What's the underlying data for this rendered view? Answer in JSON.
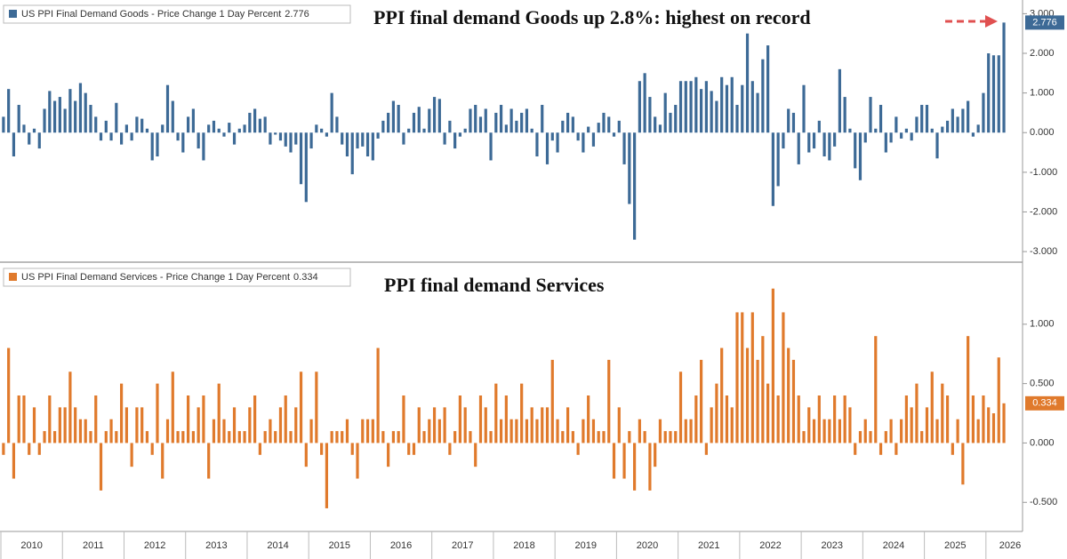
{
  "chart_data": [
    {
      "type": "bar",
      "annotation": "PPI final demand Goods up 2.8%: highest on record",
      "series": [
        {
          "name": "US PPI Final Demand Goods - Price Change 1 Day Percent",
          "color": "#3d6a96",
          "values": [
            0.4,
            1.1,
            -0.6,
            0.7,
            0.2,
            -0.3,
            0.1,
            -0.4,
            0.6,
            1.05,
            0.8,
            0.9,
            0.6,
            1.1,
            0.8,
            1.25,
            1.0,
            0.7,
            0.4,
            -0.2,
            0.3,
            -0.2,
            0.75,
            -0.3,
            0.2,
            -0.2,
            0.4,
            0.35,
            0.1,
            -0.7,
            -0.6,
            0.2,
            1.2,
            0.8,
            -0.2,
            -0.5,
            0.4,
            0.6,
            -0.4,
            -0.7,
            0.2,
            0.3,
            0.1,
            -0.1,
            0.25,
            -0.3,
            0.1,
            0.2,
            0.5,
            0.6,
            0.35,
            0.4,
            -0.3,
            -0.05,
            -0.2,
            -0.35,
            -0.5,
            -0.3,
            -1.3,
            -1.75,
            -0.4,
            0.2,
            0.1,
            -0.1,
            1.0,
            0.4,
            -0.3,
            -0.6,
            -1.05,
            -0.4,
            -0.35,
            -0.6,
            -0.7,
            -0.15,
            0.3,
            0.5,
            0.8,
            0.7,
            -0.3,
            0.1,
            0.5,
            0.65,
            0.1,
            0.6,
            0.9,
            0.85,
            -0.3,
            0.3,
            -0.4,
            -0.1,
            0.1,
            0.6,
            0.7,
            0.4,
            0.6,
            -0.7,
            0.5,
            0.7,
            0.2,
            0.6,
            0.3,
            0.5,
            0.6,
            0.1,
            -0.6,
            0.7,
            -0.8,
            -0.2,
            -0.5,
            0.3,
            0.5,
            0.4,
            -0.2,
            -0.5,
            0.15,
            -0.35,
            0.25,
            0.5,
            0.4,
            -0.1,
            0.3,
            -0.8,
            -1.8,
            -2.7,
            1.3,
            1.5,
            0.9,
            0.4,
            0.2,
            1.0,
            0.5,
            0.7,
            1.3,
            1.3,
            1.3,
            1.4,
            1.1,
            1.3,
            1.05,
            0.8,
            1.4,
            1.2,
            1.4,
            0.7,
            1.2,
            2.5,
            1.3,
            1.0,
            1.85,
            2.2,
            -1.85,
            -1.35,
            -0.4,
            0.6,
            0.5,
            -0.8,
            1.2,
            -0.5,
            -0.4,
            0.3,
            -0.6,
            -0.7,
            -0.35,
            1.6,
            0.9,
            0.1,
            -0.9,
            -1.2,
            -0.25,
            0.9,
            0.1,
            0.7,
            -0.5,
            -0.25,
            0.4,
            -0.15,
            0.1,
            -0.2,
            0.4,
            0.7,
            0.7,
            0.1,
            -0.65,
            0.15,
            0.3,
            0.6,
            0.4,
            0.6,
            0.8,
            -0.1,
            0.2,
            1.0,
            2.0,
            1.95,
            1.95,
            2.776
          ]
        }
      ],
      "ylim": [
        -3.2,
        3.3
      ],
      "yticks": [
        {
          "value": 3,
          "label": "3.000"
        },
        {
          "value": 2,
          "label": "2.000"
        },
        {
          "value": 1,
          "label": "1.000"
        },
        {
          "value": 0,
          "label": "0.000"
        },
        {
          "value": -1,
          "label": "-1.000"
        },
        {
          "value": -2,
          "label": "-2.000"
        },
        {
          "value": -3,
          "label": "-3.000"
        }
      ]
    },
    {
      "type": "bar",
      "annotation": "PPI final demand Services",
      "categories": [
        "2010",
        null,
        null,
        null,
        null,
        null,
        null,
        null,
        null,
        null,
        null,
        null,
        "2011",
        null,
        null,
        null,
        null,
        null,
        null,
        null,
        null,
        null,
        null,
        null,
        "2012",
        null,
        null,
        null,
        null,
        null,
        null,
        null,
        null,
        null,
        null,
        null,
        "2013",
        null,
        null,
        null,
        null,
        null,
        null,
        null,
        null,
        null,
        null,
        null,
        "2014",
        null,
        null,
        null,
        null,
        null,
        null,
        null,
        null,
        null,
        null,
        null,
        "2015",
        null,
        null,
        null,
        null,
        null,
        null,
        null,
        null,
        null,
        null,
        null,
        "2016",
        null,
        null,
        null,
        null,
        null,
        null,
        null,
        null,
        null,
        null,
        null,
        "2017",
        null,
        null,
        null,
        null,
        null,
        null,
        null,
        null,
        null,
        null,
        null,
        "2018",
        null,
        null,
        null,
        null,
        null,
        null,
        null,
        null,
        null,
        null,
        null,
        "2019",
        null,
        null,
        null,
        null,
        null,
        null,
        null,
        null,
        null,
        null,
        null,
        "2020",
        null,
        null,
        null,
        null,
        null,
        null,
        null,
        null,
        null,
        null,
        null,
        "2021",
        null,
        null,
        null,
        null,
        null,
        null,
        null,
        null,
        null,
        null,
        null,
        "2022",
        null,
        null,
        null,
        null,
        null,
        null,
        null,
        null,
        null,
        null,
        null,
        "2023",
        null,
        null,
        null,
        null,
        null,
        null,
        null,
        null,
        null,
        null,
        null,
        "2024",
        null,
        null,
        null,
        null,
        null,
        null,
        null,
        null,
        null,
        null,
        null,
        "2025",
        null,
        null,
        null,
        null,
        null,
        null,
        null,
        null,
        null,
        null,
        null,
        "2026",
        null,
        null,
        null
      ],
      "series": [
        {
          "name": "US PPI Final Demand Services - Price Change 1 Day Percent",
          "color": "#e07a2c",
          "values": [
            -0.1,
            0.8,
            -0.3,
            0.4,
            0.4,
            -0.1,
            0.3,
            -0.1,
            0.1,
            0.4,
            0.1,
            0.3,
            0.3,
            0.6,
            0.3,
            0.2,
            0.2,
            0.1,
            0.4,
            -0.4,
            0.1,
            0.2,
            0.1,
            0.5,
            0.3,
            -0.2,
            0.3,
            0.3,
            0.1,
            -0.1,
            0.5,
            -0.3,
            0.2,
            0.6,
            0.1,
            0.1,
            0.4,
            0.1,
            0.3,
            0.4,
            -0.3,
            0.2,
            0.5,
            0.2,
            0.1,
            0.3,
            0.1,
            0.1,
            0.3,
            0.4,
            -0.1,
            0.1,
            0.2,
            0.1,
            0.3,
            0.4,
            0.1,
            0.3,
            0.6,
            -0.2,
            0.2,
            0.6,
            -0.1,
            -0.55,
            0.1,
            0.1,
            0.1,
            0.2,
            -0.1,
            -0.3,
            0.2,
            0.2,
            0.2,
            0.8,
            0.1,
            -0.2,
            0.1,
            0.1,
            0.4,
            -0.1,
            -0.1,
            0.3,
            0.1,
            0.2,
            0.3,
            0.2,
            0.3,
            -0.1,
            0.1,
            0.4,
            0.3,
            0.1,
            -0.2,
            0.4,
            0.3,
            0.1,
            0.5,
            0.2,
            0.4,
            0.2,
            0.2,
            0.5,
            0.2,
            0.3,
            0.2,
            0.3,
            0.3,
            0.7,
            0.2,
            0.1,
            0.3,
            0.1,
            -0.1,
            0.2,
            0.4,
            0.2,
            0.1,
            0.1,
            0.7,
            -0.3,
            0.3,
            -0.3,
            0.1,
            -0.4,
            0.2,
            0.1,
            -0.4,
            -0.2,
            0.2,
            0.1,
            0.1,
            0.1,
            0.6,
            0.2,
            0.2,
            0.4,
            0.7,
            -0.1,
            0.3,
            0.5,
            0.8,
            0.4,
            0.3,
            1.1,
            1.1,
            0.8,
            1.1,
            0.7,
            0.9,
            0.5,
            1.3,
            0.4,
            1.1,
            0.8,
            0.7,
            0.4,
            0.1,
            0.3,
            0.2,
            0.4,
            0.2,
            0.2,
            0.4,
            0.2,
            0.4,
            0.3,
            -0.1,
            0.1,
            0.2,
            0.1,
            0.9,
            -0.1,
            0.1,
            0.2,
            -0.1,
            0.2,
            0.4,
            0.3,
            0.5,
            0.1,
            0.3,
            0.6,
            0.2,
            0.5,
            0.4,
            -0.1,
            0.2,
            -0.35,
            0.9,
            0.4,
            0.2,
            0.4,
            0.3,
            0.25,
            0.72,
            0.334
          ]
        }
      ],
      "ylim": [
        -0.73,
        1.5
      ],
      "yticks": [
        {
          "value": 1,
          "label": "1.000"
        },
        {
          "value": 0.5,
          "label": "0.500"
        },
        {
          "value": 0,
          "label": "0.000"
        },
        {
          "value": -0.5,
          "label": "-0.500"
        }
      ]
    }
  ]
}
